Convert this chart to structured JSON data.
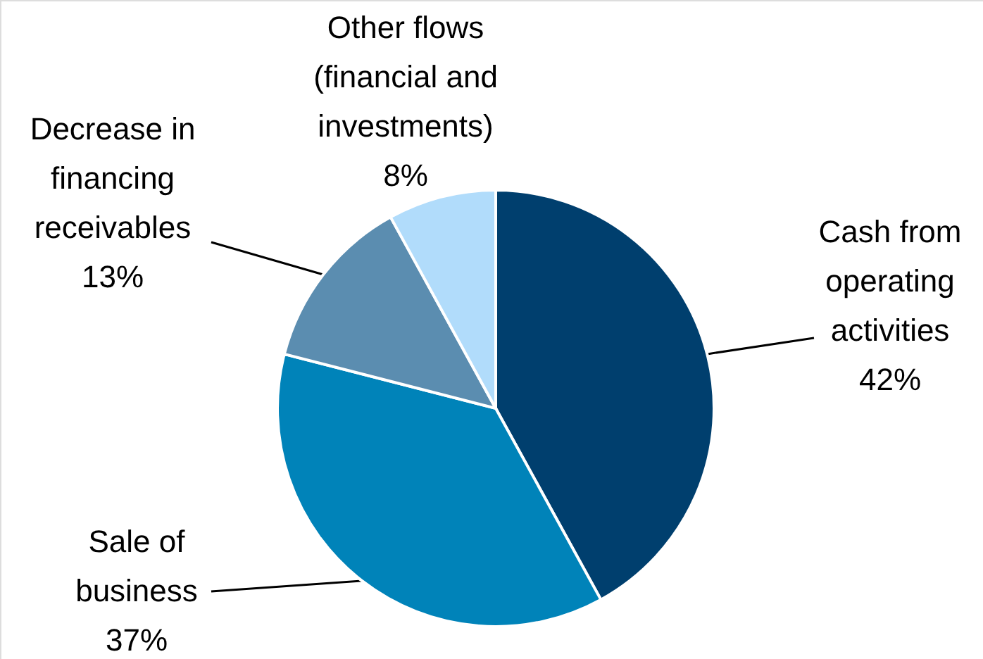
{
  "chart_data": {
    "type": "pie",
    "categories": [
      "Cash from operating activities",
      "Sale of business",
      "Decrease in financing receivables",
      "Other flows (financial and investments)"
    ],
    "values": [
      42,
      37,
      13,
      8
    ],
    "colors": [
      "#003f6e",
      "#0083b9",
      "#5b8db0",
      "#b1dcfb"
    ],
    "value_labels": [
      "42%",
      "37%",
      "13%",
      "8%"
    ]
  }
}
